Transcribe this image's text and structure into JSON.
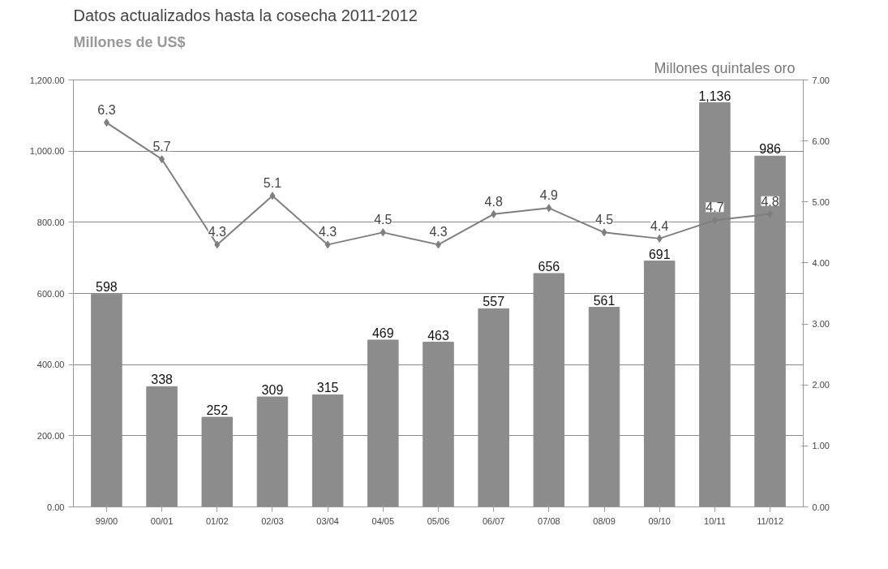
{
  "chart_data": {
    "type": "bar",
    "title": "Datos actualizados hasta la cosecha 2011-2012",
    "ylabel": "Millones  de US$",
    "y2label": "Millones  quintales  oro",
    "categories": [
      "99/00",
      "00/01",
      "01/02",
      "02/03",
      "03/04",
      "04/05",
      "05/06",
      "06/07",
      "07/08",
      "08/09",
      "09/10",
      "10/11",
      "11/012"
    ],
    "series": [
      {
        "color": "#8c8c8c",
        "values": [
          598,
          338,
          252,
          309,
          315,
          469,
          463,
          557,
          656,
          561,
          691,
          1136,
          986
        ],
        "value_labels": [
          "598",
          "338",
          "252",
          "309",
          "315",
          "469",
          "463",
          "557",
          "656",
          "561",
          "691",
          "1,136",
          "986"
        ]
      },
      {
        "type": "line",
        "axis": "y2",
        "color": "#7f7f7f",
        "marker": "diamond",
        "values": [
          6.3,
          5.7,
          4.3,
          5.1,
          4.3,
          4.5,
          4.3,
          4.8,
          4.9,
          4.5,
          4.4,
          4.7,
          4.8
        ],
        "value_labels": [
          "6.3",
          "5.7",
          "4.3",
          "5.1",
          "4.3",
          "4.5",
          "4.3",
          "4.8",
          "4.9",
          "4.5",
          "4.4",
          "4.7",
          "4.8"
        ]
      }
    ],
    "ylim": [
      0,
      1200
    ],
    "yticks": [
      {
        "value": 0,
        "label": "0.00"
      },
      {
        "value": 200,
        "label": "200.00"
      },
      {
        "value": 400,
        "label": "400.00"
      },
      {
        "value": 600,
        "label": "600.00"
      },
      {
        "value": 800,
        "label": "800.00"
      },
      {
        "value": 1000,
        "label": "1,000.00"
      },
      {
        "value": 1200,
        "label": "1,200.00"
      }
    ],
    "y2lim": [
      0,
      7
    ],
    "y2ticks": [
      {
        "value": 0,
        "label": "0.00"
      },
      {
        "value": 1,
        "label": "1.00"
      },
      {
        "value": 2,
        "label": "2.00"
      },
      {
        "value": 3,
        "label": "3.00"
      },
      {
        "value": 4,
        "label": "4.00"
      },
      {
        "value": 5,
        "label": "5.00"
      },
      {
        "value": 6,
        "label": "6.00"
      },
      {
        "value": 7,
        "label": "7.00"
      }
    ],
    "grid": "y"
  }
}
